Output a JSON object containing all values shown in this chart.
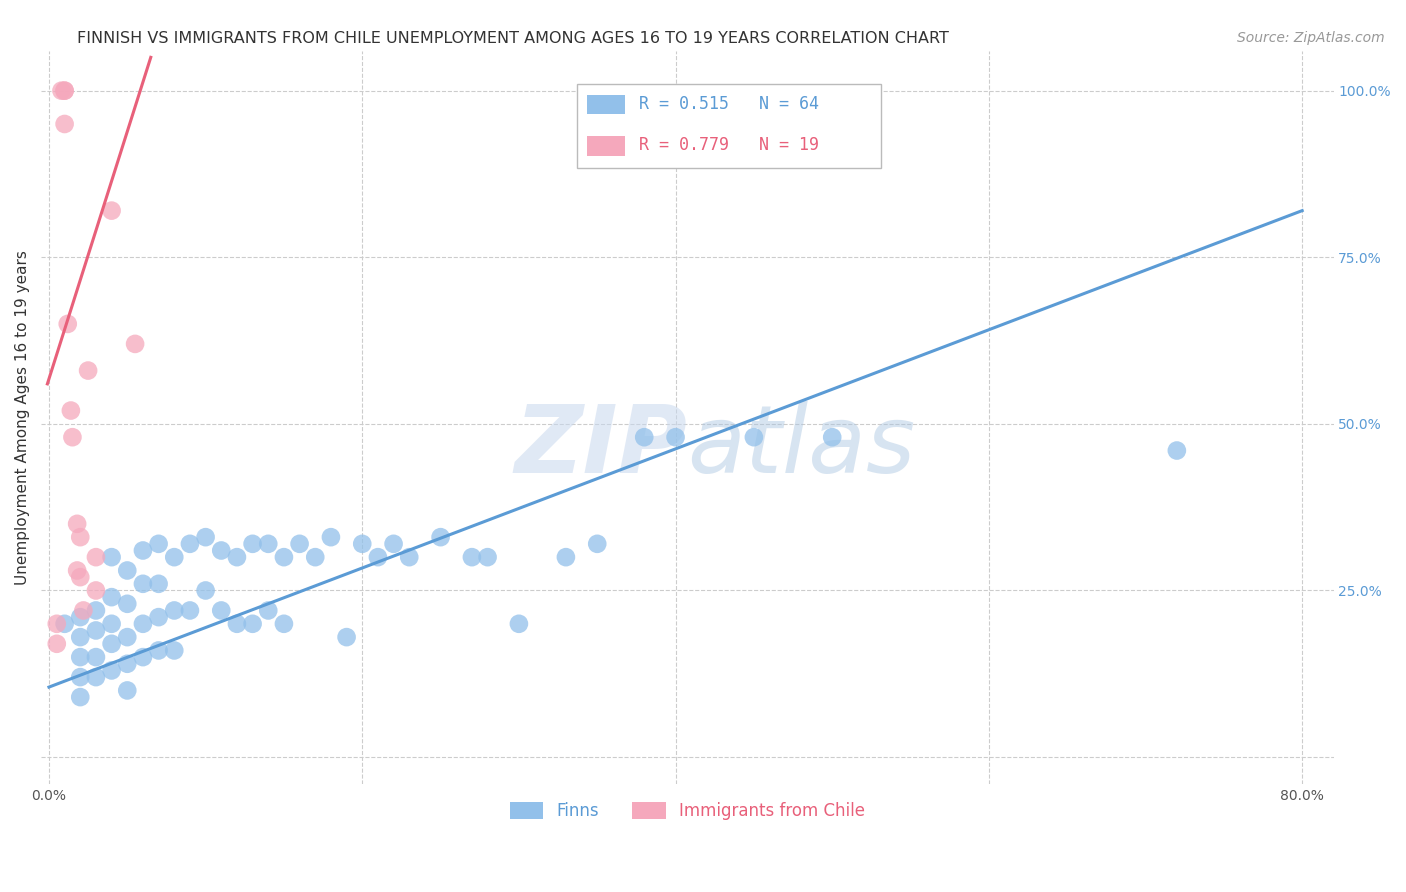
{
  "title": "FINNISH VS IMMIGRANTS FROM CHILE UNEMPLOYMENT AMONG AGES 16 TO 19 YEARS CORRELATION CHART",
  "source": "Source: ZipAtlas.com",
  "ylabel": "Unemployment Among Ages 16 to 19 years",
  "xlim": [
    -0.005,
    0.82
  ],
  "ylim": [
    -0.04,
    1.06
  ],
  "xticks": [
    0.0,
    0.2,
    0.4,
    0.6,
    0.8
  ],
  "xticklabels": [
    "0.0%",
    "",
    "",
    "",
    "80.0%"
  ],
  "yticks_right": [
    0.0,
    0.25,
    0.5,
    0.75,
    1.0
  ],
  "yticklabels_right": [
    "",
    "25.0%",
    "50.0%",
    "75.0%",
    "100.0%"
  ],
  "r_blue": 0.515,
  "n_blue": 64,
  "r_pink": 0.779,
  "n_pink": 19,
  "blue_color": "#92C0EA",
  "pink_color": "#F5A8BC",
  "blue_line_color": "#5B9BD5",
  "pink_line_color": "#E8607A",
  "legend_blue_label": "Finns",
  "legend_pink_label": "Immigrants from Chile",
  "watermark_zip": "ZIP",
  "watermark_atlas": "atlas",
  "blue_points_x": [
    0.01,
    0.02,
    0.02,
    0.02,
    0.02,
    0.02,
    0.03,
    0.03,
    0.03,
    0.03,
    0.04,
    0.04,
    0.04,
    0.04,
    0.04,
    0.05,
    0.05,
    0.05,
    0.05,
    0.05,
    0.06,
    0.06,
    0.06,
    0.06,
    0.07,
    0.07,
    0.07,
    0.07,
    0.08,
    0.08,
    0.08,
    0.09,
    0.09,
    0.1,
    0.1,
    0.11,
    0.11,
    0.12,
    0.12,
    0.13,
    0.13,
    0.14,
    0.14,
    0.15,
    0.15,
    0.16,
    0.17,
    0.18,
    0.19,
    0.2,
    0.21,
    0.22,
    0.23,
    0.25,
    0.27,
    0.28,
    0.3,
    0.33,
    0.35,
    0.38,
    0.4,
    0.45,
    0.5,
    0.72
  ],
  "blue_points_y": [
    0.2,
    0.21,
    0.18,
    0.15,
    0.12,
    0.09,
    0.22,
    0.19,
    0.15,
    0.12,
    0.3,
    0.24,
    0.2,
    0.17,
    0.13,
    0.28,
    0.23,
    0.18,
    0.14,
    0.1,
    0.31,
    0.26,
    0.2,
    0.15,
    0.32,
    0.26,
    0.21,
    0.16,
    0.3,
    0.22,
    0.16,
    0.32,
    0.22,
    0.33,
    0.25,
    0.31,
    0.22,
    0.3,
    0.2,
    0.32,
    0.2,
    0.32,
    0.22,
    0.3,
    0.2,
    0.32,
    0.3,
    0.33,
    0.18,
    0.32,
    0.3,
    0.32,
    0.3,
    0.33,
    0.3,
    0.3,
    0.2,
    0.3,
    0.32,
    0.48,
    0.48,
    0.48,
    0.48,
    0.46
  ],
  "pink_points_x": [
    0.005,
    0.005,
    0.008,
    0.01,
    0.01,
    0.01,
    0.012,
    0.014,
    0.015,
    0.018,
    0.018,
    0.02,
    0.02,
    0.022,
    0.025,
    0.03,
    0.03,
    0.04,
    0.055
  ],
  "pink_points_y": [
    0.2,
    0.17,
    1.0,
    1.0,
    1.0,
    0.95,
    0.65,
    0.52,
    0.48,
    0.35,
    0.28,
    0.33,
    0.27,
    0.22,
    0.58,
    0.3,
    0.25,
    0.82,
    0.62
  ],
  "blue_regline_x": [
    0.0,
    0.8
  ],
  "blue_regline_y": [
    0.105,
    0.82
  ],
  "pink_regline_x": [
    -0.001,
    0.065
  ],
  "pink_regline_y": [
    0.56,
    1.05
  ],
  "title_fontsize": 11.5,
  "axis_label_fontsize": 11,
  "tick_fontsize": 10,
  "legend_fontsize": 12,
  "source_fontsize": 10
}
